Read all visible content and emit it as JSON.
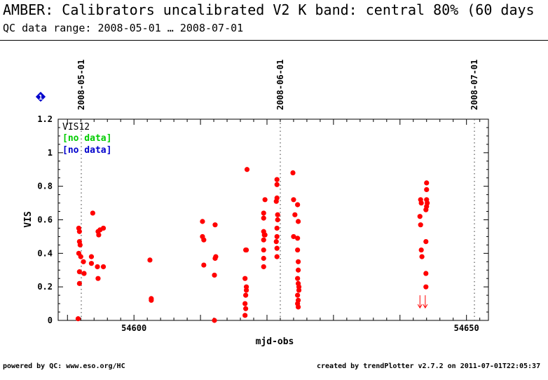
{
  "header": {
    "title": "AMBER: Calibrators uncalibrated V2 K band: central 80% (60 days",
    "subtitle": "QC data range: 2008-05-01 … 2008-07-01"
  },
  "footer": {
    "left": "powered by QC: www.eso.org/HC",
    "right": "created by trendPlotter v2.7.2 on 2011-07-01T22:05:37"
  },
  "marker": {
    "symbol": "1",
    "color": "#0000cc"
  },
  "chart_data": {
    "type": "scatter",
    "xlabel": "mjd-obs",
    "ylabel": "VIS",
    "xlim": [
      54588.6,
      54653.3
    ],
    "ylim": [
      0,
      1.2
    ],
    "x_ticks": [
      54600,
      54650
    ],
    "y_ticks": [
      0,
      0.2,
      0.4,
      0.6,
      0.8,
      1,
      1.2
    ],
    "y_tick_labels": [
      "0",
      "0.2",
      "0.4",
      "0.6",
      "0.8",
      "1",
      "1.2"
    ],
    "date_lines": [
      {
        "x": 54587.0,
        "label": "2008-05-01"
      },
      {
        "x": 54618.0,
        "label": "2008-06-01"
      },
      {
        "x": 54648.0,
        "label": "2008-07-01"
      }
    ],
    "legend": [
      {
        "label": "VIS12",
        "color": "#000000"
      },
      {
        "label": "[no data]",
        "color": "#00cc00"
      },
      {
        "label": "[no data]",
        "color": "#0000cc"
      }
    ],
    "series": [
      {
        "name": "VIS12",
        "color": "#ff0000",
        "points": [
          [
            54591.7,
            0.55
          ],
          [
            54591.8,
            0.53
          ],
          [
            54591.8,
            0.47
          ],
          [
            54591.9,
            0.45
          ],
          [
            54591.7,
            0.4
          ],
          [
            54592.0,
            0.38
          ],
          [
            54591.8,
            0.29
          ],
          [
            54591.8,
            0.22
          ],
          [
            54591.6,
            0.01
          ],
          [
            54592.4,
            0.35
          ],
          [
            54592.5,
            0.28
          ],
          [
            54593.6,
            0.38
          ],
          [
            54593.6,
            0.34
          ],
          [
            54593.8,
            0.64
          ],
          [
            54594.5,
            0.32
          ],
          [
            54594.6,
            0.25
          ],
          [
            54594.6,
            0.53
          ],
          [
            54594.7,
            0.51
          ],
          [
            54594.9,
            0.54
          ],
          [
            54595.4,
            0.55
          ],
          [
            54595.4,
            0.32
          ],
          [
            54602.4,
            0.36
          ],
          [
            54602.6,
            0.13
          ],
          [
            54602.6,
            0.12
          ],
          [
            54610.3,
            0.59
          ],
          [
            54610.3,
            0.5
          ],
          [
            54610.5,
            0.48
          ],
          [
            54610.5,
            0.33
          ],
          [
            54612.2,
            0.57
          ],
          [
            54612.3,
            0.38
          ],
          [
            54612.2,
            0.37
          ],
          [
            54612.1,
            0.27
          ],
          [
            54612.1,
            0.0
          ],
          [
            54617.0,
            0.9
          ],
          [
            54616.8,
            0.42
          ],
          [
            54616.9,
            0.42
          ],
          [
            54616.7,
            0.25
          ],
          [
            54616.9,
            0.2
          ],
          [
            54616.9,
            0.18
          ],
          [
            54616.8,
            0.15
          ],
          [
            54616.7,
            0.1
          ],
          [
            54616.8,
            0.07
          ],
          [
            54616.7,
            0.03
          ],
          [
            54619.5,
            0.64
          ],
          [
            54619.5,
            0.61
          ],
          [
            54619.5,
            0.53
          ],
          [
            54619.5,
            0.48
          ],
          [
            54619.6,
            0.51
          ],
          [
            54619.7,
            0.51
          ],
          [
            54619.5,
            0.42
          ],
          [
            54619.5,
            0.37
          ],
          [
            54619.5,
            0.32
          ],
          [
            54619.7,
            0.72
          ],
          [
            54621.5,
            0.84
          ],
          [
            54621.5,
            0.81
          ],
          [
            54621.5,
            0.73
          ],
          [
            54621.4,
            0.71
          ],
          [
            54621.6,
            0.63
          ],
          [
            54621.6,
            0.6
          ],
          [
            54621.5,
            0.55
          ],
          [
            54621.5,
            0.5
          ],
          [
            54621.4,
            0.47
          ],
          [
            54621.5,
            0.43
          ],
          [
            54621.5,
            0.38
          ],
          [
            54623.9,
            0.88
          ],
          [
            54624.0,
            0.72
          ],
          [
            54624.2,
            0.63
          ],
          [
            54624.0,
            0.5
          ],
          [
            54624.6,
            0.69
          ],
          [
            54624.7,
            0.59
          ],
          [
            54624.6,
            0.49
          ],
          [
            54624.6,
            0.42
          ],
          [
            54624.7,
            0.35
          ],
          [
            54624.7,
            0.3
          ],
          [
            54624.6,
            0.25
          ],
          [
            54624.7,
            0.22
          ],
          [
            54624.8,
            0.2
          ],
          [
            54624.8,
            0.18
          ],
          [
            54624.6,
            0.15
          ],
          [
            54624.7,
            0.12
          ],
          [
            54624.6,
            0.1
          ],
          [
            54624.7,
            0.08
          ],
          [
            54643.1,
            0.72
          ],
          [
            54643.2,
            0.7
          ],
          [
            54643.0,
            0.62
          ],
          [
            54643.1,
            0.57
          ],
          [
            54643.2,
            0.42
          ],
          [
            54643.3,
            0.38
          ],
          [
            54644.0,
            0.82
          ],
          [
            54644.0,
            0.78
          ],
          [
            54644.0,
            0.72
          ],
          [
            54644.1,
            0.7
          ],
          [
            54643.9,
            0.66
          ],
          [
            54644.0,
            0.68
          ],
          [
            54643.9,
            0.47
          ],
          [
            54643.9,
            0.28
          ],
          [
            54643.9,
            0.2
          ]
        ],
        "limit_arrows": [
          [
            54643.0,
            0.15
          ],
          [
            54643.8,
            0.15
          ]
        ]
      }
    ]
  }
}
